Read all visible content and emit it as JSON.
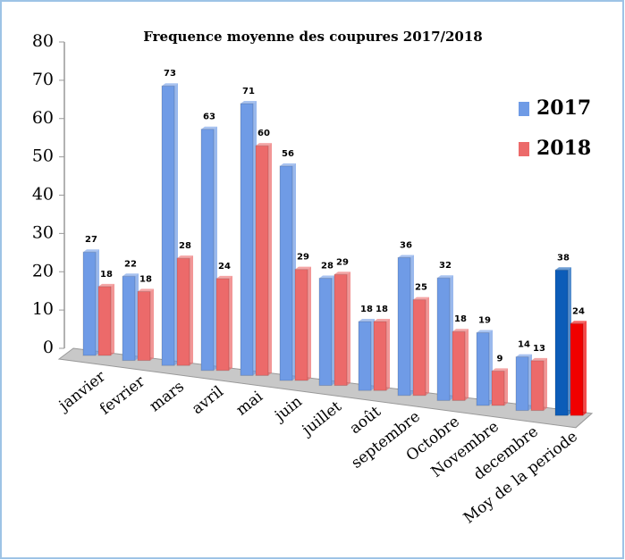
{
  "chart_data": {
    "type": "bar3d",
    "title": "Frequence moyenne des coupures 2017/2018",
    "categories": [
      "janvier",
      "fevrier",
      "mars",
      "avril",
      "mai",
      "juin",
      "juillet",
      "août",
      "septembre",
      "Octobre",
      "Novembre",
      "decembre",
      "Moy de la periode"
    ],
    "series": [
      {
        "name": "2017",
        "color": "#6f9be6",
        "colors": [
          "#6f9be6",
          "#6f9be6",
          "#6f9be6",
          "#6f9be6",
          "#6f9be6",
          "#6f9be6",
          "#6f9be6",
          "#6f9be6",
          "#6f9be6",
          "#6f9be6",
          "#6f9be6",
          "#6f9be6",
          "#0c5cb8"
        ],
        "values": [
          27,
          22,
          73,
          63,
          71,
          56,
          28,
          18,
          36,
          32,
          19,
          14,
          38
        ]
      },
      {
        "name": "2018",
        "color": "#ec6a6a",
        "colors": [
          "#ec6a6a",
          "#ec6a6a",
          "#ec6a6a",
          "#ec6a6a",
          "#ec6a6a",
          "#ec6a6a",
          "#ec6a6a",
          "#ec6a6a",
          "#ec6a6a",
          "#ec6a6a",
          "#ec6a6a",
          "#ec6a6a",
          "#f00000"
        ],
        "values": [
          18,
          18,
          28,
          24,
          60,
          29,
          29,
          18,
          25,
          18,
          9,
          13,
          24
        ]
      }
    ],
    "ylim": [
      0,
      80
    ],
    "yticks": [
      0,
      10,
      20,
      30,
      40,
      50,
      60,
      70,
      80
    ],
    "legend": "right"
  }
}
